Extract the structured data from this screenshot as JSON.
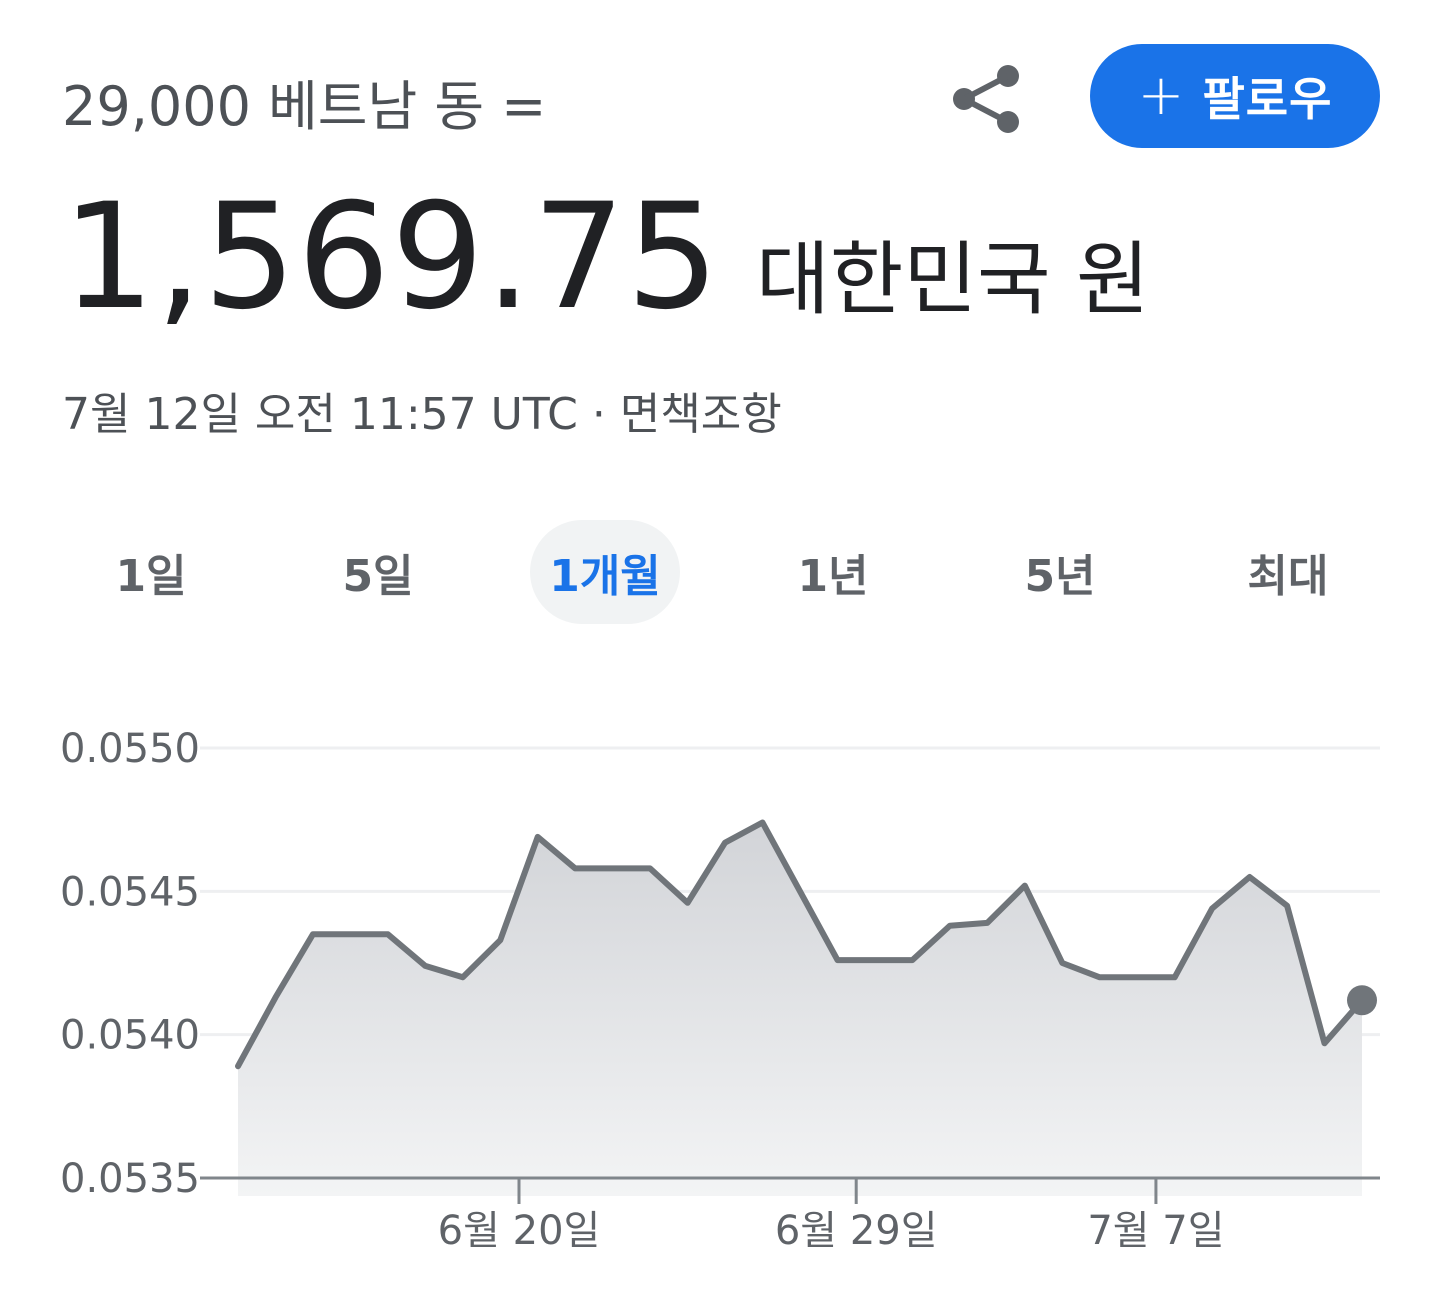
{
  "header": {
    "subtitle": "29,000 베트남 동 =",
    "value": "1,569.75",
    "unit": "대한민국 원",
    "timestamp": "7월 12일 오전 11:57 UTC · 면책조항",
    "share_icon": "share-icon",
    "follow_plus": "+",
    "follow_label": "팔로우"
  },
  "tabs": [
    {
      "label": "1일",
      "active": false
    },
    {
      "label": "5일",
      "active": false
    },
    {
      "label": "1개월",
      "active": true
    },
    {
      "label": "1년",
      "active": false
    },
    {
      "label": "5년",
      "active": false
    },
    {
      "label": "최대",
      "active": false
    }
  ],
  "colors": {
    "accent": "#1a73e8",
    "line": "#70757a",
    "area": "#e8eaed"
  },
  "chart_data": {
    "type": "area",
    "ylim": [
      0.0535,
      0.055
    ],
    "yticks": [
      "0.0550",
      "0.0545",
      "0.0540",
      "0.0535"
    ],
    "xticks": [
      {
        "label": "6월 20일",
        "index": 7.5
      },
      {
        "label": "6월 29일",
        "index": 16.5
      },
      {
        "label": "7월 7일",
        "index": 24.5
      }
    ],
    "grid": true,
    "series": [
      {
        "values": [
          0.05389,
          0.05413,
          0.05435,
          0.05435,
          0.05435,
          0.05424,
          0.0542,
          0.05433,
          0.05469,
          0.05458,
          0.05458,
          0.05458,
          0.05446,
          0.05467,
          0.05474,
          0.0545,
          0.05426,
          0.05426,
          0.05426,
          0.05438,
          0.05439,
          0.05452,
          0.05425,
          0.0542,
          0.0542,
          0.0542,
          0.05444,
          0.05455,
          0.05445,
          0.05397,
          0.05412
        ]
      }
    ]
  }
}
